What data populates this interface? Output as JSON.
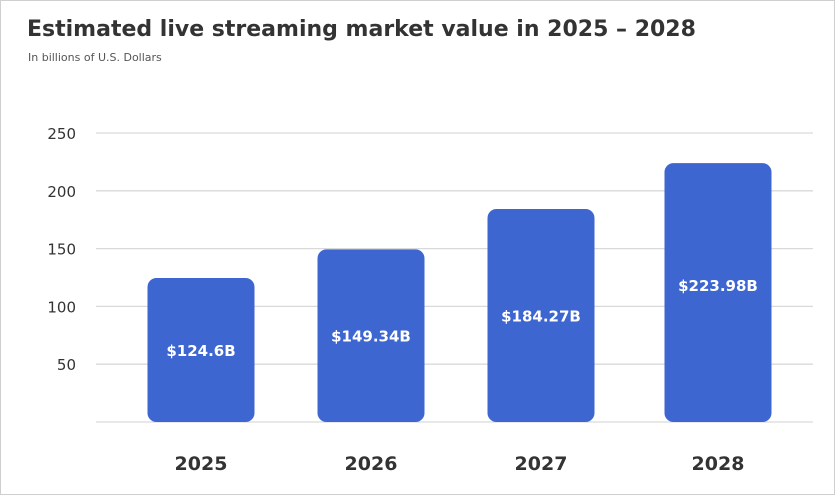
{
  "title": "Estimated live streaming market value in 2025 – 2028",
  "subtitle": "In billions of U.S. Dollars",
  "colors": {
    "bar": "#3d66d1",
    "grid": "#d9d9d9",
    "tick_text": "#333333",
    "bar_label": "#ffffff"
  },
  "chart_data": {
    "type": "bar",
    "categories": [
      "2025",
      "2026",
      "2027",
      "2028"
    ],
    "values": [
      124.6,
      149.34,
      184.27,
      223.98
    ],
    "value_labels": [
      "$124.6B",
      "$149.34B",
      "$184.27B",
      "$223.98B"
    ],
    "title": "Estimated live streaming market value in 2025 – 2028",
    "subtitle": "In billions of U.S. Dollars",
    "xlabel": "",
    "ylabel": "",
    "ylim": [
      0,
      250
    ],
    "yticks": [
      50,
      100,
      150,
      200,
      250
    ],
    "grid": true,
    "legend": "none"
  }
}
